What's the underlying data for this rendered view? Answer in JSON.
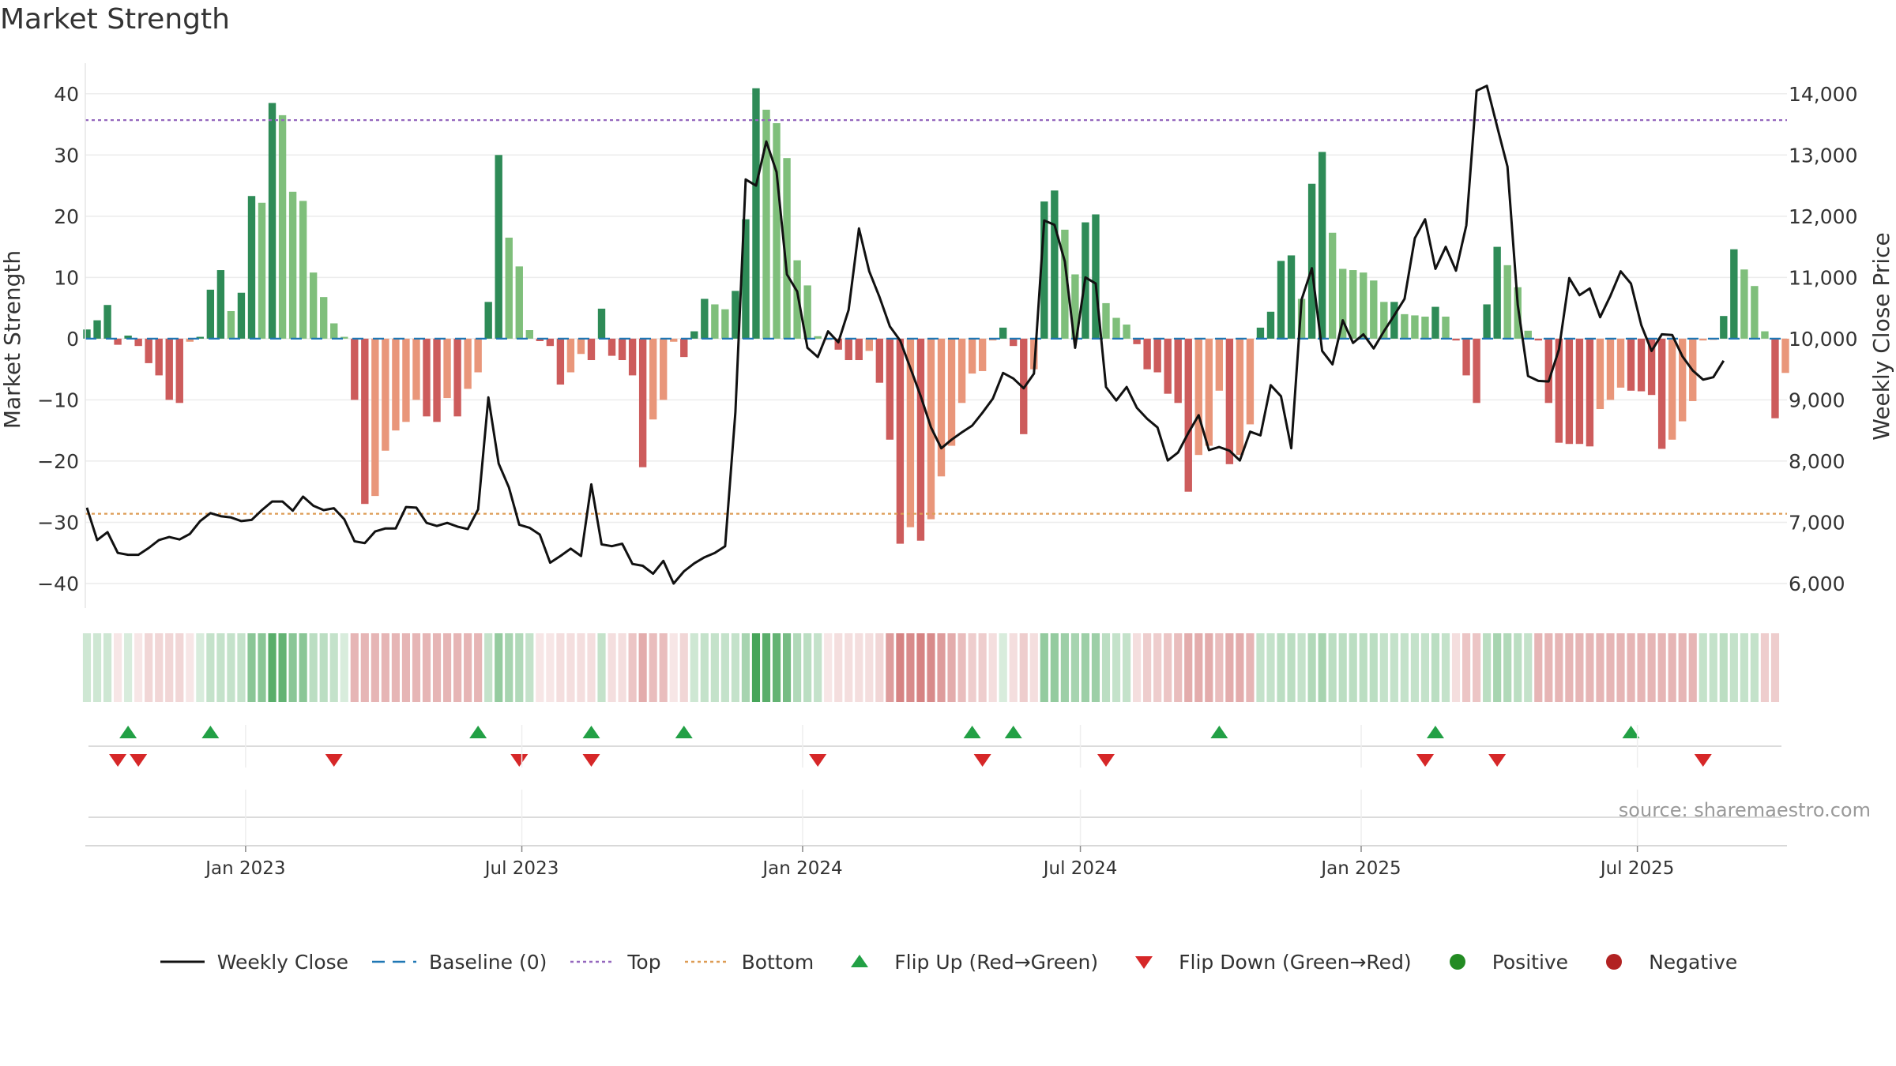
{
  "title": "Market Strength",
  "source": "source: sharemaestro.com",
  "colors": {
    "pos_dark": "#2e8b57",
    "pos_light": "#7fbf7b",
    "neg_dark": "#cd5c5c",
    "neg_light": "#e9967a",
    "price_line": "#111111",
    "baseline": "#1f77b4",
    "top": "#9467bd",
    "bottom": "#dd9c55",
    "flip_up": "#22a045",
    "flip_down": "#d62728",
    "positive": "#228b22",
    "negative": "#b22222"
  },
  "legend": [
    {
      "label": "Weekly Close",
      "kind": "line"
    },
    {
      "label": "Baseline (0)",
      "kind": "dash"
    },
    {
      "label": "Top",
      "kind": "dot-purple"
    },
    {
      "label": "Bottom",
      "kind": "dot-orange"
    },
    {
      "label": "Flip Up (Red→Green)",
      "kind": "tri-up"
    },
    {
      "label": "Flip Down (Green→Red)",
      "kind": "tri-down"
    },
    {
      "label": "Positive",
      "kind": "circle-green"
    },
    {
      "label": "Negative",
      "kind": "circle-red"
    }
  ],
  "chart_data": {
    "type": "bar",
    "title": "Market Strength",
    "ylabel": "Market Strength",
    "y2label": "Weekly Close Price",
    "ylim": [
      -44,
      45
    ],
    "y2lim": [
      5600,
      14500
    ],
    "yticks": [
      40,
      30,
      20,
      10,
      0,
      -10,
      -20,
      -30,
      -40
    ],
    "yticklabels": [
      "40",
      "30",
      "20",
      "10",
      "0",
      "−10",
      "−20",
      "−30",
      "−40"
    ],
    "y2ticks": [
      14000,
      13000,
      12000,
      11000,
      10000,
      9000,
      8000,
      7000,
      6000
    ],
    "y2ticklabels": [
      "14,000",
      "13,000",
      "12,000",
      "11,000",
      "10,000",
      "9,000",
      "8,000",
      "7,000",
      "6,000"
    ],
    "top_level": 35.7,
    "bottom_level": -28.6,
    "x_start": "2022-09-19",
    "x_end": "2025-10-06",
    "xticks": [
      {
        "date": "2023-01-01",
        "label": "Jan 2023"
      },
      {
        "date": "2023-07-01",
        "label": "Jul 2023"
      },
      {
        "date": "2024-01-01",
        "label": "Jan 2024"
      },
      {
        "date": "2024-07-01",
        "label": "Jul 2024"
      },
      {
        "date": "2025-01-01",
        "label": "Jan 2025"
      },
      {
        "date": "2025-07-01",
        "label": "Jul 2025"
      }
    ],
    "strength": [
      1.5,
      3,
      5.5,
      -1,
      0.5,
      -1.2,
      -4,
      -6,
      -10,
      -10.5,
      -0.5,
      0.3,
      8,
      11.2,
      4.5,
      7.5,
      23.3,
      22.2,
      38.5,
      36.5,
      24,
      22.5,
      10.8,
      6.8,
      2.5,
      0.3,
      -10,
      -27,
      -25.7,
      -18.3,
      -15,
      -13.6,
      -10,
      -12.7,
      -13.6,
      -9.7,
      -12.7,
      -8.2,
      -5.5,
      6,
      30,
      16.5,
      11.8,
      1.4,
      -0.4,
      -1.2,
      -7.5,
      -5.5,
      -2.5,
      -3.5,
      4.9,
      -2.8,
      -3.5,
      -6,
      -21,
      -13.2,
      -10,
      -0.5,
      -3,
      1.2,
      6.5,
      5.6,
      4.8,
      7.8,
      19.5,
      40.9,
      37.4,
      35.2,
      29.5,
      12.8,
      8.7,
      0.4,
      -0.2,
      -1.8,
      -3.5,
      -3.5,
      -2,
      -7.2,
      -16.5,
      -33.5,
      -30.8,
      -33,
      -29.5,
      -22.5,
      -17.5,
      -10.5,
      -5.7,
      -5.3,
      -0.3,
      1.8,
      -1.2,
      -15.6,
      -5,
      22.4,
      24.2,
      17.8,
      10.5,
      19,
      20.3,
      5.8,
      3.4,
      2.3,
      -0.9,
      -5,
      -5.5,
      -9,
      -10.5,
      -25,
      -19,
      -17.5,
      -8.5,
      -20.5,
      -19,
      -14,
      1.8,
      4.4,
      12.7,
      13.6,
      6.5,
      25.3,
      30.5,
      17.3,
      11.4,
      11.2,
      10.8,
      9.5,
      6,
      6,
      4,
      3.8,
      3.6,
      5.2,
      3.6,
      -0.3,
      -6,
      -10.5,
      5.6,
      15,
      12,
      8.4,
      1.3,
      -0.3,
      -10.5,
      -17,
      -17.2,
      -17.2,
      -17.6,
      -11.5,
      -10,
      -8,
      -8.5,
      -8.6,
      -9.2,
      -18,
      -16.5,
      -13.5,
      -10.2,
      -0.3,
      -0.2,
      3.7,
      14.6,
      11.3,
      8.6,
      1.2,
      -13,
      -5.6
    ],
    "weekly_close": [
      7240,
      6710,
      6840,
      6500,
      6470,
      6470,
      6580,
      6710,
      6760,
      6720,
      6810,
      7020,
      7150,
      7100,
      7080,
      7020,
      7040,
      7200,
      7340,
      7340,
      7190,
      7420,
      7270,
      7200,
      7230,
      7050,
      6690,
      6660,
      6850,
      6900,
      6900,
      7250,
      7240,
      6990,
      6940,
      6990,
      6930,
      6890,
      7210,
      9040,
      7960,
      7570,
      6960,
      6910,
      6800,
      6340,
      6450,
      6570,
      6450,
      7620,
      6640,
      6610,
      6650,
      6320,
      6290,
      6160,
      6370,
      6000,
      6200,
      6330,
      6430,
      6500,
      6610,
      8800,
      12600,
      12500,
      13220,
      12720,
      11050,
      10770,
      9850,
      9700,
      10120,
      9940,
      10470,
      11800,
      11100,
      10680,
      10200,
      9970,
      9520,
      9060,
      8550,
      8210,
      8350,
      8470,
      8580,
      8790,
      9020,
      9440,
      9350,
      9190,
      9430,
      11930,
      11860,
      11260,
      9850,
      11000,
      10900,
      9210,
      8990,
      9210,
      8870,
      8690,
      8550,
      8010,
      8140,
      8460,
      8750,
      8180,
      8230,
      8170,
      8010,
      8480,
      8420,
      9240,
      9060,
      8210,
      10640,
      11150,
      9800,
      9580,
      10300,
      9930,
      10070,
      9840,
      10120,
      10380,
      10650,
      11640,
      11950,
      11140,
      11500,
      11110,
      11850,
      14050,
      14130,
      13460,
      12810,
      10550,
      9390,
      9310,
      9300,
      9820,
      10990,
      10710,
      10820,
      10350,
      10700,
      11100,
      10900,
      10220,
      9800,
      10070,
      10060,
      9710,
      9480,
      9330,
      9370,
      9640
    ],
    "bar_strip": [
      0.25,
      0.25,
      0.25,
      -0.1,
      0.2,
      -0.15,
      -0.25,
      -0.25,
      -0.25,
      -0.25,
      -0.15,
      0.2,
      0.3,
      0.3,
      0.3,
      0.3,
      0.6,
      0.6,
      0.85,
      0.8,
      0.6,
      0.6,
      0.35,
      0.35,
      0.3,
      0.2,
      -0.45,
      -0.45,
      -0.45,
      -0.45,
      -0.45,
      -0.45,
      -0.45,
      -0.45,
      -0.45,
      -0.45,
      -0.45,
      -0.45,
      -0.45,
      0.3,
      0.55,
      0.45,
      0.4,
      0.3,
      -0.15,
      -0.15,
      -0.2,
      -0.2,
      -0.2,
      -0.2,
      0.3,
      -0.2,
      -0.2,
      -0.35,
      -0.5,
      -0.4,
      -0.4,
      -0.15,
      -0.25,
      0.25,
      0.3,
      0.3,
      0.3,
      0.3,
      0.45,
      0.95,
      0.85,
      0.8,
      0.7,
      0.4,
      0.35,
      0.3,
      -0.15,
      -0.2,
      -0.2,
      -0.2,
      -0.2,
      -0.25,
      -0.6,
      -0.75,
      -0.7,
      -0.75,
      -0.7,
      -0.6,
      -0.5,
      -0.4,
      -0.3,
      -0.3,
      -0.2,
      0.2,
      -0.2,
      -0.3,
      -0.2,
      0.55,
      0.55,
      0.5,
      0.45,
      0.5,
      0.5,
      0.35,
      0.3,
      0.3,
      -0.2,
      -0.3,
      -0.3,
      -0.35,
      -0.4,
      -0.5,
      -0.5,
      -0.5,
      -0.4,
      -0.5,
      -0.5,
      -0.45,
      0.3,
      0.3,
      0.35,
      0.35,
      0.3,
      0.4,
      0.45,
      0.35,
      0.35,
      0.35,
      0.35,
      0.35,
      0.3,
      0.3,
      0.3,
      0.3,
      0.3,
      0.35,
      0.3,
      -0.2,
      -0.35,
      -0.35,
      0.35,
      0.45,
      0.4,
      0.35,
      0.3,
      -0.45,
      -0.45,
      -0.45,
      -0.45,
      -0.45,
      -0.45,
      -0.45,
      -0.45,
      -0.45,
      -0.45,
      -0.45,
      -0.45,
      -0.45,
      -0.45,
      -0.45,
      -0.45,
      0.3,
      0.3,
      0.35,
      0.3,
      0.3,
      0.3,
      -0.3,
      -0.3
    ],
    "flip_up_idx": [
      4,
      12,
      38,
      49,
      58,
      86,
      90,
      110,
      131,
      150
    ],
    "flip_down_idx": [
      3,
      5,
      24,
      42,
      49,
      71,
      87,
      99,
      130,
      137,
      157
    ]
  }
}
